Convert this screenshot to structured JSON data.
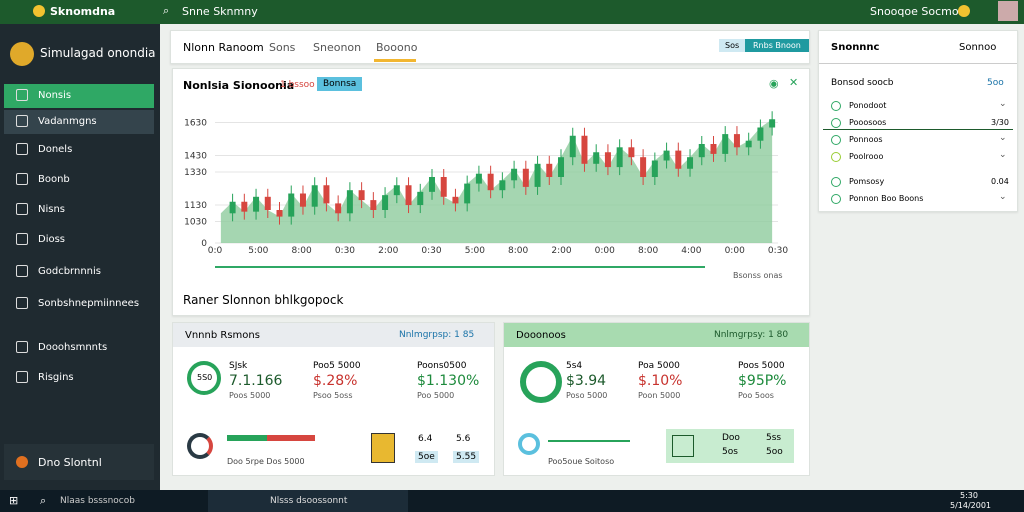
{
  "topbar": {
    "brand": "Sknomdna",
    "search": "Snne Sknmny",
    "user": "Snooqoe Socmos"
  },
  "sidebar": {
    "title": "Simulagad onondia",
    "items": [
      "Nonsis",
      "Vadanmgns",
      "Donels",
      "Boonb",
      "Nisns",
      "Dioss",
      "Godcbrnnnis",
      "Sonbshnepmiinnees",
      "Dooohsmnnts",
      "Risgins"
    ],
    "footer": "Dno Slontnl"
  },
  "tabs": {
    "items": [
      "Nlonn Ranoom",
      "Sons",
      "Sneonon",
      "Booono"
    ],
    "buttons": [
      "Sos",
      "Rnbs Bnoon"
    ]
  },
  "chart_card": {
    "title": "Nonlsia Sionoonia",
    "subtitle": "1 bssoo",
    "badge": "Bonnsa",
    "note": "Bsonss onas",
    "section": "Raner Slonnon bhlkgopock"
  },
  "chart_data": {
    "type": "candlestick",
    "up_color": "#27a35a",
    "down_color": "#d6463f",
    "area_color": "#8fcc9d",
    "values": [
      1080,
      1150,
      1090,
      1180,
      1100,
      1060,
      1200,
      1120,
      1250,
      1140,
      1080,
      1220,
      1160,
      1100,
      1190,
      1250,
      1130,
      1210,
      1300,
      1180,
      1140,
      1260,
      1320,
      1220,
      1280,
      1350,
      1240,
      1380,
      1300,
      1420,
      1550,
      1380,
      1450,
      1360,
      1480,
      1420,
      1300,
      1400,
      1460,
      1350,
      1420,
      1500,
      1440,
      1560,
      1480,
      1520,
      1600,
      1650
    ],
    "ylim": [
      900,
      1700
    ],
    "yticks": [
      {
        "value": 900,
        "label": "0"
      },
      1030,
      1130,
      1330,
      1430,
      1630
    ],
    "xlabels": [
      "0:0",
      "5:00",
      "8:00",
      "0:30",
      "2:00",
      "0:30",
      "5:00",
      "8:00",
      "2:00",
      "0:00",
      "8:00",
      "4:00",
      "0:00",
      "0:30"
    ]
  },
  "cards": [
    {
      "title": "Vnnnb Rsmons",
      "link": "Nnlmgrpsp: 1 85",
      "ring": "5S0",
      "items": [
        {
          "top": "SJsk",
          "value": "7.1.166",
          "sub": "Poos 5000"
        },
        {
          "top": "Poo5 5000",
          "value": "$.28%",
          "sub": "Psoo 5oss"
        },
        {
          "top": "Poons0500",
          "value": "$1.130%",
          "sub": "Poo 5000"
        }
      ],
      "bottom": "Doo 5rpe Dos 5000",
      "extra": [
        "6.4",
        "5.6",
        "5oe",
        "5.55"
      ]
    },
    {
      "title": "Dooonoos",
      "link": "Nnlmgrpsy: 1 80",
      "items": [
        {
          "top": "5s4",
          "value": "$3.94",
          "sub": "Poso 5000"
        },
        {
          "top": "Poa 5000",
          "value": "$.10%",
          "sub": "Poon 5000"
        },
        {
          "top": "Poos 5000",
          "value": "$95P%",
          "sub": "Poo 5oos"
        }
      ],
      "bottom": "Poo5oue Soitoso",
      "extra": [
        "Doo",
        "5ss",
        "5os",
        "5oo"
      ]
    }
  ],
  "right_panel": {
    "header": "Snonnnc",
    "button": "Sonnoo",
    "subheader": "Bonsod soocb",
    "count": "5oo",
    "items": [
      {
        "label": "Ponodoot"
      },
      {
        "label": "Pooosoos",
        "value": "3/30"
      },
      {
        "label": "Ponnoos"
      },
      {
        "label": "Poolrooo"
      },
      {
        "label": "Pomsosy",
        "value": "0.04"
      },
      {
        "label": "Ponnon Boo Boons"
      }
    ]
  },
  "taskbar": {
    "search": "Nlaas bsssnocob",
    "app": "Nlsss dsoossonnt",
    "time": "5:30",
    "date": "5/14/2001"
  }
}
